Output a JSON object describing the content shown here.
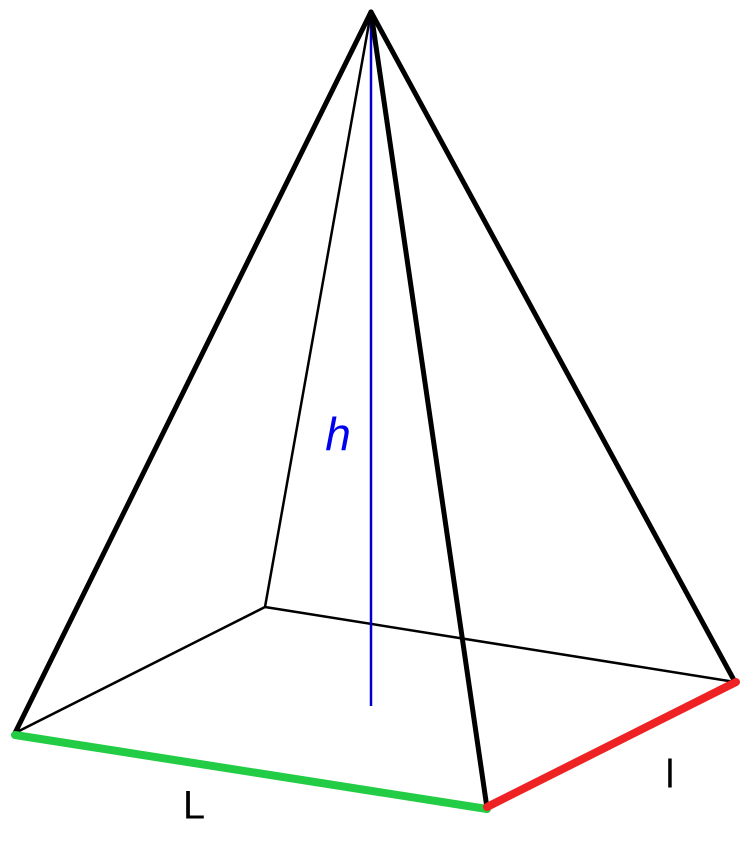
{
  "labels": {
    "height": "h",
    "length": "L",
    "width": "l"
  }
}
